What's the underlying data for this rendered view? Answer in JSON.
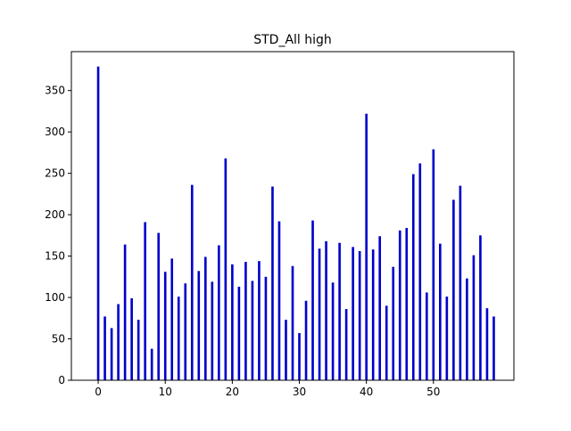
{
  "chart_data": {
    "type": "bar",
    "title": "STD_All high",
    "xlabel": "",
    "ylabel": "",
    "x": [
      0,
      1,
      2,
      3,
      4,
      5,
      6,
      7,
      8,
      9,
      10,
      11,
      12,
      13,
      14,
      15,
      16,
      17,
      18,
      19,
      20,
      21,
      22,
      23,
      24,
      25,
      26,
      27,
      28,
      29,
      30,
      31,
      32,
      33,
      34,
      35,
      36,
      37,
      38,
      39,
      40,
      41,
      42,
      43,
      44,
      45,
      46,
      47,
      48,
      49,
      50,
      51,
      52,
      53,
      54,
      55,
      56,
      57,
      58,
      59
    ],
    "values": [
      379,
      77,
      63,
      92,
      164,
      99,
      73,
      191,
      38,
      178,
      131,
      147,
      101,
      117,
      236,
      132,
      149,
      119,
      163,
      268,
      140,
      113,
      143,
      120,
      144,
      125,
      234,
      192,
      73,
      138,
      57,
      96,
      193,
      159,
      168,
      118,
      166,
      86,
      161,
      156,
      322,
      158,
      174,
      90,
      137,
      181,
      184,
      249,
      262,
      106,
      279,
      165,
      101,
      218,
      235,
      123,
      151,
      175,
      87,
      77
    ],
    "xlim": [
      -4,
      62
    ],
    "ylim": [
      0,
      397
    ],
    "xticks": [
      0,
      10,
      20,
      30,
      40,
      50
    ],
    "yticks": [
      0,
      50,
      100,
      150,
      200,
      250,
      300,
      350
    ],
    "grid": false,
    "bar_color": "#0000cc"
  }
}
